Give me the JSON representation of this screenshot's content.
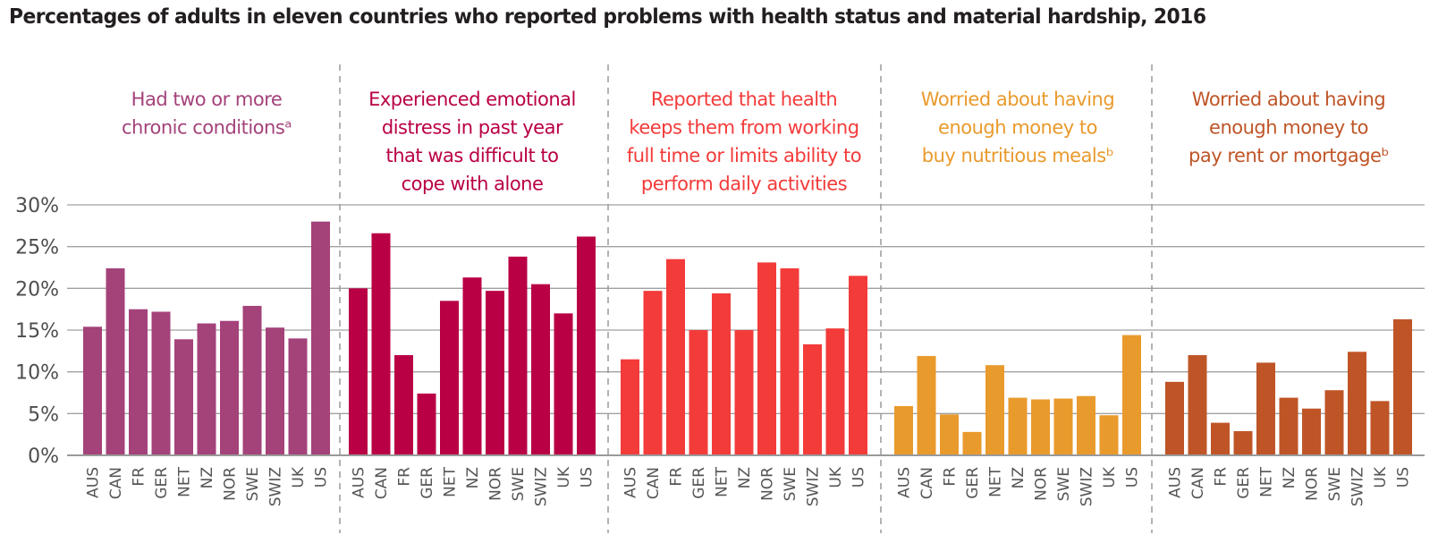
{
  "chart_data": {
    "type": "bar",
    "title": "Percentages of adults in eleven countries who reported problems with health status and material hardship, 2016",
    "xlabel": "",
    "ylabel": "",
    "ylim": [
      0,
      30
    ],
    "yticks": [
      0,
      5,
      10,
      15,
      20,
      25,
      30
    ],
    "ytick_labels": [
      "0%",
      "5%",
      "10%",
      "15%",
      "20%",
      "25%",
      "30%"
    ],
    "grid": true,
    "legend": "none",
    "categories": [
      "AUS",
      "CAN",
      "FR",
      "GER",
      "NET",
      "NZ",
      "NOR",
      "SWE",
      "SWIZ",
      "UK",
      "US"
    ],
    "panels": [
      {
        "title_lines": [
          "Had two or more",
          "chronic conditionsᵃ"
        ],
        "color": "#a4427a",
        "values": [
          15.4,
          22.4,
          17.5,
          17.2,
          13.9,
          15.8,
          16.1,
          17.9,
          15.3,
          14.0,
          28.0
        ]
      },
      {
        "title_lines": [
          "Experienced emotional",
          "distress in past year",
          "that was difficult to",
          "cope with alone"
        ],
        "color": "#b90045",
        "values": [
          20.0,
          26.6,
          12.0,
          7.4,
          18.5,
          21.3,
          19.7,
          23.8,
          20.5,
          17.0,
          26.2
        ]
      },
      {
        "title_lines": [
          "Reported that health",
          "keeps them from working",
          "full time or limits ability to",
          "perform daily activities"
        ],
        "color": "#f33b3a",
        "values": [
          11.5,
          19.7,
          23.5,
          15.0,
          19.4,
          15.0,
          23.1,
          22.4,
          13.3,
          15.2,
          21.5
        ]
      },
      {
        "title_lines": [
          "Worried about having",
          "enough money to",
          "buy nutritious mealsᵇ"
        ],
        "color": "#e99a2c",
        "values": [
          5.9,
          11.9,
          4.9,
          2.8,
          10.8,
          6.9,
          6.7,
          6.8,
          7.1,
          4.8,
          14.4
        ]
      },
      {
        "title_lines": [
          "Worried about having",
          "enough money to",
          "pay rent or mortgageᵇ"
        ],
        "color": "#bf5527",
        "values": [
          8.8,
          12.0,
          3.9,
          2.9,
          11.1,
          6.9,
          5.6,
          7.8,
          12.4,
          6.5,
          16.3
        ]
      }
    ]
  }
}
